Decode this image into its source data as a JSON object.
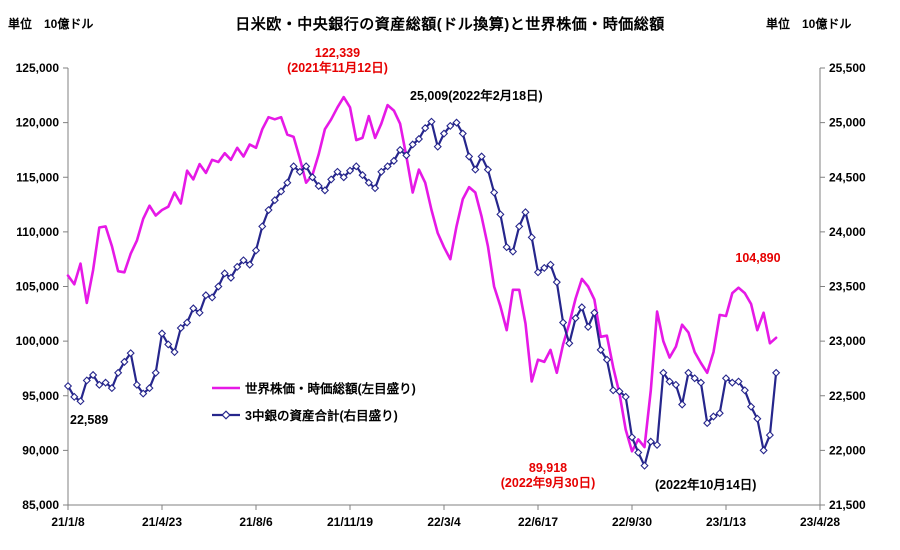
{
  "header": {
    "title": "日米欧・中央銀行の資産総額(ドル換算)と世界株価・時価総額",
    "unit_left": "単位　10億ドル",
    "unit_right": "単位　10億ドル"
  },
  "legend": {
    "items": [
      {
        "label": "世界株価・時価総額(左目盛り)"
      },
      {
        "label": "3中銀の資産合計(右目盛り)"
      }
    ]
  },
  "annotations": {
    "magenta_peak": {
      "value": "122,339",
      "date": "(2021年11月12日)"
    },
    "navy_peak": {
      "text": "25,009(2022年2月18日)"
    },
    "magenta_recent_peak": {
      "value": "104,890"
    },
    "navy_start": {
      "value": "22,589"
    },
    "magenta_min": {
      "value": "89,918",
      "date": "(2022年9月30日)"
    },
    "navy_min_date": {
      "text": "(2022年10月14日)"
    }
  },
  "chart_data": {
    "type": "line",
    "title": "日米欧・中央銀行の資産総額(ドル換算)と世界株価・時価総額",
    "unit": "10億ドル",
    "grid": false,
    "legend_position": "inside-lower-left",
    "x_tick_labels": [
      "21/1/8",
      "21/4/23",
      "21/8/6",
      "21/11/19",
      "22/3/4",
      "22/6/17",
      "22/9/30",
      "23/1/13",
      "23/4/28"
    ],
    "x_tick_weeks": [
      0,
      15,
      30,
      45,
      60,
      75,
      90,
      105,
      120
    ],
    "x_weeks_span": 120,
    "x_cadence": "weekly",
    "left_ylim": [
      85000,
      125000
    ],
    "right_ylim": [
      21500,
      25500
    ],
    "left_tick_labels": [
      "125,000",
      "120,000",
      "115,000",
      "110,000",
      "105,000",
      "100,000",
      "95,000",
      "90,000",
      "85,000"
    ],
    "right_tick_labels": [
      "25,500",
      "25,000",
      "24,500",
      "24,000",
      "23,500",
      "23,000",
      "22,500",
      "22,000",
      "21,500"
    ],
    "colors": {
      "annotation_red": "#E60000",
      "text": "#000000",
      "axis": "#808080"
    },
    "series": [
      {
        "name": "世界株価・時価総額(左目盛り)",
        "axis": "left",
        "color": "#E619E6",
        "marker": "none",
        "values": [
          106000,
          105200,
          107100,
          103500,
          106500,
          110400,
          110500,
          108700,
          106400,
          106300,
          108000,
          109200,
          111200,
          112400,
          111500,
          112000,
          112300,
          113600,
          112600,
          115600,
          114800,
          116200,
          115400,
          116600,
          116400,
          117200,
          116600,
          117700,
          116900,
          118000,
          117700,
          119400,
          120500,
          120300,
          120500,
          118900,
          118700,
          116700,
          114500,
          115200,
          117100,
          119400,
          120300,
          121400,
          122339,
          121400,
          118400,
          118600,
          120600,
          118600,
          119900,
          121600,
          121100,
          119900,
          116900,
          113600,
          115700,
          114500,
          112000,
          109900,
          108600,
          107500,
          110500,
          113000,
          114100,
          113600,
          111400,
          108700,
          105000,
          103200,
          101000,
          104700,
          104700,
          101600,
          96300,
          98300,
          98100,
          99200,
          97100,
          99700,
          101600,
          103900,
          105700,
          105000,
          103800,
          100400,
          100500,
          97600,
          95200,
          91900,
          89918,
          91000,
          90300,
          95500,
          102700,
          100000,
          98500,
          99500,
          101500,
          100800,
          99000,
          98000,
          97100,
          99000,
          102400,
          102300,
          104400,
          104890,
          104400,
          103400,
          101000,
          102600,
          99800,
          100300
        ]
      },
      {
        "name": "3中銀の資産合計(右目盛り)",
        "axis": "right",
        "color": "#26268C",
        "marker": "diamond",
        "values": [
          22589,
          22490,
          22450,
          22640,
          22690,
          22600,
          22620,
          22570,
          22710,
          22810,
          22890,
          22600,
          22520,
          22570,
          22710,
          23070,
          22970,
          22900,
          23120,
          23170,
          23300,
          23260,
          23420,
          23400,
          23500,
          23620,
          23580,
          23680,
          23740,
          23700,
          23830,
          24050,
          24200,
          24290,
          24370,
          24450,
          24600,
          24550,
          24600,
          24500,
          24420,
          24380,
          24480,
          24550,
          24500,
          24560,
          24600,
          24520,
          24450,
          24400,
          24550,
          24600,
          24650,
          24750,
          24700,
          24800,
          24850,
          24950,
          25009,
          24780,
          24900,
          24970,
          25000,
          24900,
          24690,
          24570,
          24690,
          24570,
          24360,
          24160,
          23860,
          23820,
          24050,
          24180,
          23950,
          23630,
          23670,
          23700,
          23540,
          23170,
          22980,
          23210,
          23310,
          23130,
          23260,
          22920,
          22830,
          22550,
          22540,
          22490,
          22120,
          21980,
          21860,
          22080,
          22050,
          22710,
          22630,
          22600,
          22420,
          22710,
          22660,
          22620,
          22250,
          22310,
          22340,
          22660,
          22620,
          22630,
          22550,
          22400,
          22290,
          22000,
          22140,
          22710
        ]
      }
    ]
  }
}
